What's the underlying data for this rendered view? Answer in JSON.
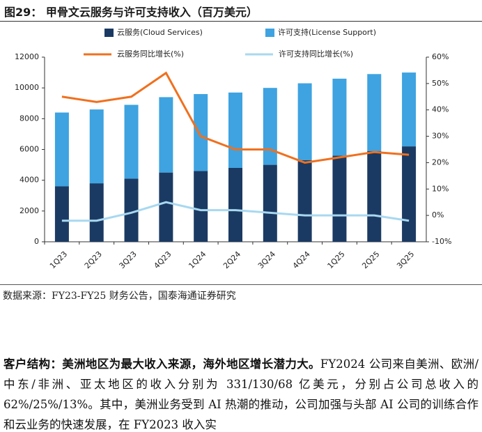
{
  "figure_title": "图29：  甲骨文云服务与许可支持收入（百万美元）",
  "chart_data": {
    "type": "bar",
    "stacked": true,
    "categories": [
      "1Q23",
      "2Q23",
      "3Q23",
      "4Q23",
      "1Q24",
      "2Q24",
      "3Q24",
      "4Q24",
      "1Q25",
      "2Q25",
      "3Q25"
    ],
    "series": [
      {
        "name": "云服务(Cloud Services)",
        "type": "bar",
        "color": "#1b3a63",
        "values": [
          3600,
          3800,
          4100,
          4500,
          4600,
          4800,
          5000,
          5300,
          5600,
          5900,
          6200
        ]
      },
      {
        "name": "许可支持(License Support)",
        "type": "bar",
        "color": "#3ea3e0",
        "values": [
          4800,
          4800,
          4800,
          4900,
          5000,
          4900,
          5000,
          5000,
          5000,
          5000,
          4800
        ]
      },
      {
        "name": "云服务同比增长(%)",
        "type": "line",
        "axis": "y2",
        "color": "#f0701e",
        "values": [
          45,
          43,
          45,
          54,
          30,
          25,
          25,
          20,
          22,
          24,
          23
        ]
      },
      {
        "name": "许可支持同比增长(%)",
        "type": "line",
        "axis": "y2",
        "color": "#a8d8f0",
        "values": [
          -2,
          -2,
          1,
          5,
          2,
          2,
          1,
          0,
          0,
          0,
          -2
        ]
      }
    ],
    "ylim": [
      0,
      12000
    ],
    "yticks": [
      0,
      2000,
      4000,
      6000,
      8000,
      10000,
      12000
    ],
    "y2lim": [
      -10,
      60
    ],
    "y2ticks": [
      {
        "value": -10,
        "label": "-10%"
      },
      {
        "value": 0,
        "label": "0%"
      },
      {
        "value": 10,
        "label": "10%"
      },
      {
        "value": 20,
        "label": "20%"
      },
      {
        "value": 30,
        "label": "30%"
      },
      {
        "value": 40,
        "label": "40%"
      },
      {
        "value": 50,
        "label": "50%"
      },
      {
        "value": 60,
        "label": "60%"
      }
    ],
    "grid": false
  },
  "source": "数据来源：FY23-FY25 财务公告，国泰海通证券研究",
  "paragraph": {
    "lead": "客户结构：美洲地区为最大收入来源，海外地区增长潜力大。",
    "body": "FY2024 公司来自美洲、欧洲/中东/非洲、亚太地区的收入分别为 331/130/68 亿美元，分别占公司总收入的 62%/25%/13%。其中，美洲业务受到 AI 热潮的推动，公司加强与头部 AI 公司的训练合作和云业务的快速发展，在 FY2023 收入实"
  }
}
